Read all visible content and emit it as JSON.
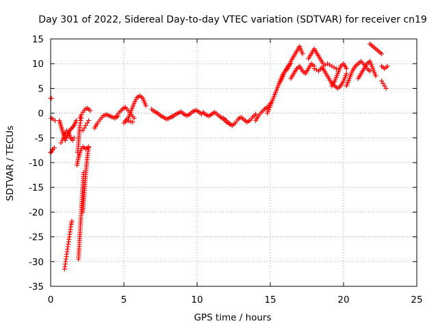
{
  "chart_data": {
    "type": "scatter",
    "title": "Day 301 of 2022, Sidereal Day-to-day VTEC variation (SDTVAR) for receiver cn19",
    "xlabel": "GPS time / hours",
    "ylabel": "SDTVAR / TECUs",
    "xlim": [
      0,
      25
    ],
    "ylim": [
      -35,
      15
    ],
    "xticks": [
      0,
      5,
      10,
      15,
      20,
      25
    ],
    "yticks": [
      15,
      10,
      5,
      0,
      -5,
      -10,
      -15,
      -20,
      -25,
      -30,
      -35
    ],
    "grid": true,
    "marker": "+",
    "color": "#ff0000",
    "segments": [
      {
        "x": [
          0.0,
          0.05
        ],
        "y": [
          3.0,
          3.0
        ]
      },
      {
        "x": [
          0.05,
          0.15,
          0.3
        ],
        "y": [
          -1.0,
          -1.2,
          -1.5
        ]
      },
      {
        "x": [
          0.0,
          0.05,
          0.1,
          0.15,
          0.25
        ],
        "y": [
          -8.0,
          -7.8,
          -7.5,
          -7.3,
          -7.0
        ]
      },
      {
        "x": [
          0.6,
          0.7,
          0.8,
          0.9,
          1.0,
          1.1,
          1.2,
          1.3,
          1.45,
          1.6,
          1.75
        ],
        "y": [
          -1.5,
          -2.5,
          -3.5,
          -4.5,
          -5.5,
          -5.0,
          -4.2,
          -3.5,
          -3.0,
          -2.5,
          -1.5
        ]
      },
      {
        "x": [
          0.7,
          0.8,
          0.9,
          1.0,
          1.1,
          1.2,
          1.3,
          1.4,
          1.5,
          1.6
        ],
        "y": [
          -6.0,
          -5.5,
          -4.8,
          -4.0,
          -3.5,
          -3.8,
          -4.5,
          -5.2,
          -5.5,
          -5.0
        ]
      },
      {
        "x": [
          0.95,
          1.0,
          1.05,
          1.1,
          1.15,
          1.2,
          1.25,
          1.3,
          1.35,
          1.4,
          1.45
        ],
        "y": [
          -31.5,
          -30.5,
          -29.5,
          -28.5,
          -27.5,
          -26.5,
          -25.5,
          -24.5,
          -23.5,
          -22.5,
          -21.8
        ]
      },
      {
        "x": [
          1.9,
          1.95,
          2.0,
          2.05,
          2.1,
          2.15,
          2.2,
          2.25
        ],
        "y": [
          -29.5,
          -27.0,
          -24.5,
          -22.0,
          -19.5,
          -17.0,
          -14.5,
          -12.0
        ]
      },
      {
        "x": [
          2.2,
          2.25,
          2.3,
          2.35,
          2.4,
          2.45,
          2.5,
          2.55,
          2.6
        ],
        "y": [
          -20.0,
          -18.0,
          -16.0,
          -14.0,
          -12.0,
          -10.5,
          -9.0,
          -7.8,
          -7.0
        ]
      },
      {
        "x": [
          1.8,
          1.9,
          2.0,
          2.1,
          2.2,
          2.3,
          2.4,
          2.5,
          2.6
        ],
        "y": [
          -10.5,
          -9.0,
          -8.0,
          -7.2,
          -6.8,
          -7.0,
          -7.2,
          -7.0,
          -6.8
        ]
      },
      {
        "x": [
          1.85,
          1.9,
          1.95,
          2.0,
          2.05,
          2.1
        ],
        "y": [
          -8.0,
          -6.0,
          -4.0,
          -2.5,
          -1.5,
          -1.0
        ]
      },
      {
        "x": [
          2.0,
          2.1,
          2.2,
          2.3,
          2.4,
          2.5,
          2.6,
          2.7
        ],
        "y": [
          -1.0,
          -0.3,
          0.2,
          0.6,
          0.9,
          1.0,
          0.8,
          0.5
        ]
      },
      {
        "x": [
          2.2,
          2.3,
          2.4,
          2.5,
          2.6
        ],
        "y": [
          -3.5,
          -3.0,
          -2.5,
          -2.0,
          -1.5
        ]
      },
      {
        "x": [
          3.0,
          3.2,
          3.4,
          3.6,
          3.8,
          4.0,
          4.2,
          4.4,
          4.6
        ],
        "y": [
          -3.0,
          -2.0,
          -1.2,
          -0.5,
          -0.3,
          -0.5,
          -0.8,
          -1.0,
          -0.6
        ]
      },
      {
        "x": [
          4.5,
          4.7,
          4.9,
          5.1,
          5.3,
          5.5,
          5.7
        ],
        "y": [
          -0.5,
          0.2,
          0.8,
          1.2,
          0.5,
          -0.3,
          -1.0
        ]
      },
      {
        "x": [
          5.1,
          5.3,
          5.5,
          5.7,
          5.9,
          6.1,
          6.3,
          6.5
        ],
        "y": [
          -1.5,
          -1.0,
          0.5,
          2.0,
          3.2,
          3.5,
          3.0,
          1.5
        ]
      },
      {
        "x": [
          5.0,
          5.2,
          5.6
        ],
        "y": [
          -2.0,
          -1.5,
          -1.8
        ]
      },
      {
        "x": [
          6.9,
          7.1,
          7.3,
          7.5,
          7.7,
          7.9,
          8.1,
          8.3
        ],
        "y": [
          0.8,
          0.3,
          0.0,
          -0.5,
          -0.8,
          -1.2,
          -1.0,
          -0.6
        ]
      },
      {
        "x": [
          8.3,
          8.5,
          8.7,
          8.9,
          9.1,
          9.3,
          9.5,
          9.7,
          9.9,
          10.1,
          10.3
        ],
        "y": [
          -0.8,
          -0.3,
          0.0,
          0.3,
          -0.2,
          -0.5,
          -0.2,
          0.3,
          0.6,
          0.3,
          -0.2
        ]
      },
      {
        "x": [
          10.4,
          10.6,
          10.8,
          11.0,
          11.2,
          11.4,
          11.6,
          11.8,
          12.0,
          12.2
        ],
        "y": [
          0.2,
          -0.3,
          -0.6,
          -0.2,
          0.2,
          -0.3,
          -0.8,
          -1.2,
          -1.8,
          -2.0
        ]
      },
      {
        "x": [
          11.8,
          12.0,
          12.2,
          12.4,
          12.6,
          12.8,
          13.0,
          13.2,
          13.4,
          13.6,
          13.8,
          14.0
        ],
        "y": [
          -1.0,
          -1.5,
          -2.2,
          -2.5,
          -2.0,
          -1.2,
          -0.8,
          -1.3,
          -1.8,
          -1.5,
          -0.8,
          -0.2
        ]
      },
      {
        "x": [
          14.0,
          14.2,
          14.4,
          14.6,
          14.8,
          15.0
        ],
        "y": [
          -1.5,
          -0.5,
          0.2,
          0.8,
          1.2,
          2.0
        ]
      },
      {
        "x": [
          14.8,
          15.0,
          15.2,
          15.4,
          15.6,
          15.8,
          16.0,
          16.2,
          16.4
        ],
        "y": [
          0.0,
          1.5,
          3.0,
          4.5,
          6.0,
          7.0,
          8.5,
          9.5,
          10.0
        ]
      },
      {
        "x": [
          15.6,
          15.8,
          16.0,
          16.2,
          16.4,
          16.6,
          16.8,
          17.0,
          17.2
        ],
        "y": [
          6.0,
          7.5,
          8.5,
          9.0,
          10.5,
          11.5,
          12.5,
          13.5,
          12.0
        ]
      },
      {
        "x": [
          16.4,
          16.6,
          16.8,
          17.0,
          17.2,
          17.4,
          17.6,
          17.8,
          18.0
        ],
        "y": [
          7.0,
          8.0,
          9.0,
          9.5,
          8.5,
          8.0,
          9.0,
          10.0,
          9.5
        ]
      },
      {
        "x": [
          17.6,
          17.8,
          18.0,
          18.2,
          18.4,
          18.6
        ],
        "y": [
          11.0,
          12.0,
          13.0,
          12.0,
          11.0,
          10.0
        ]
      },
      {
        "x": [
          18.0,
          18.3,
          18.6,
          18.9,
          19.2,
          19.5
        ],
        "y": [
          9.0,
          8.5,
          9.5,
          10.0,
          9.5,
          9.0
        ]
      },
      {
        "x": [
          18.6,
          18.8,
          19.0,
          19.2,
          19.4,
          19.6,
          19.8,
          20.0,
          20.2
        ],
        "y": [
          9.0,
          8.0,
          7.0,
          6.0,
          5.5,
          5.0,
          5.5,
          6.5,
          8.0
        ]
      },
      {
        "x": [
          19.2,
          19.4,
          19.6,
          19.8,
          20.0,
          20.2
        ],
        "y": [
          5.5,
          6.5,
          8.0,
          9.5,
          10.0,
          9.0
        ]
      },
      {
        "x": [
          20.2,
          20.4,
          20.6,
          20.8,
          21.0,
          21.2,
          21.4,
          21.6,
          21.8
        ],
        "y": [
          5.5,
          7.0,
          8.5,
          9.5,
          10.0,
          10.5,
          9.8,
          9.0,
          8.5
        ]
      },
      {
        "x": [
          21.0,
          21.2,
          21.4,
          21.6,
          21.8,
          22.0,
          22.2
        ],
        "y": [
          7.0,
          8.0,
          9.0,
          10.0,
          10.5,
          9.0,
          7.5
        ]
      },
      {
        "x": [
          21.8,
          22.0,
          22.2,
          22.4,
          22.6
        ],
        "y": [
          14.0,
          13.5,
          13.0,
          12.5,
          12.0
        ]
      },
      {
        "x": [
          22.6,
          22.8,
          23.0
        ],
        "y": [
          9.5,
          9.0,
          9.5
        ]
      },
      {
        "x": [
          22.6,
          22.7,
          22.8,
          22.9
        ],
        "y": [
          6.5,
          6.0,
          5.5,
          5.0
        ]
      }
    ]
  }
}
